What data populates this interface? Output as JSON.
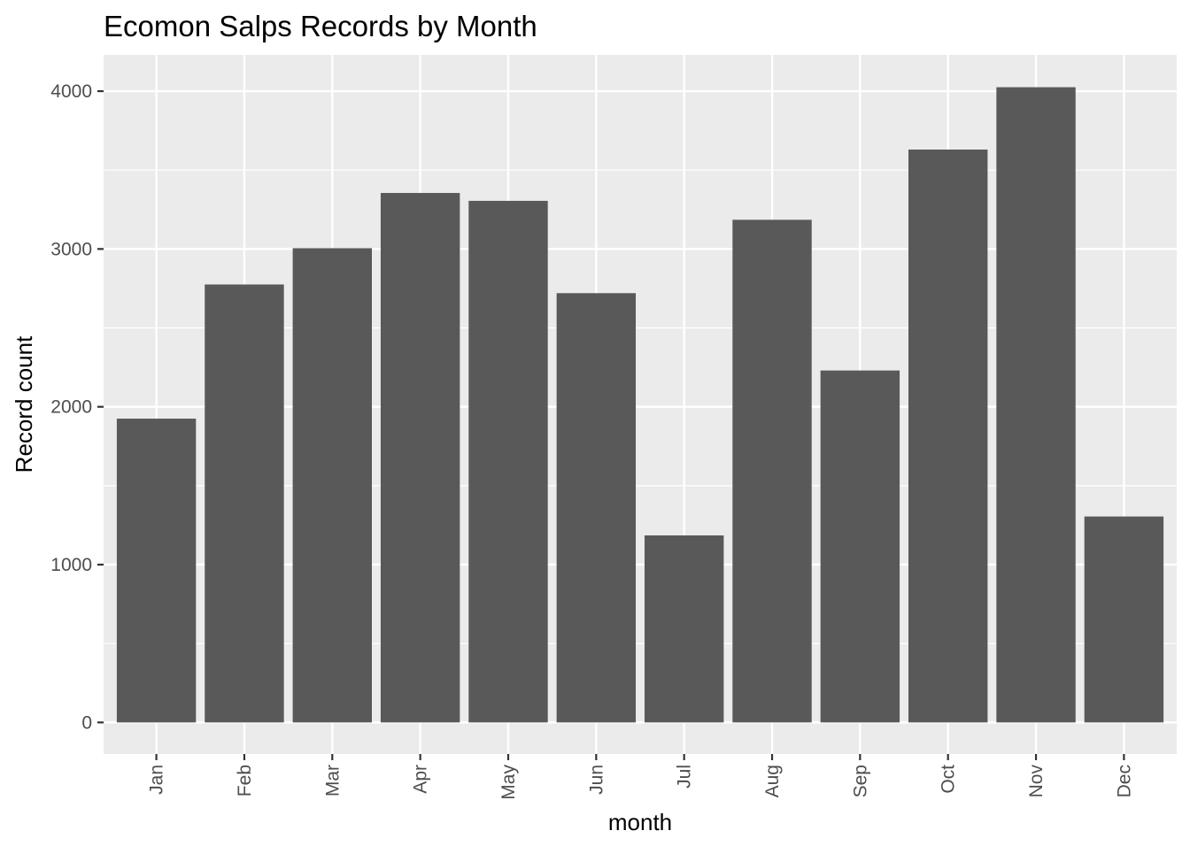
{
  "chart_data": {
    "type": "bar",
    "title": "Ecomon Salps Records by Month",
    "xlabel": "month",
    "ylabel": "Record count",
    "categories": [
      "Jan",
      "Feb",
      "Mar",
      "Apr",
      "May",
      "Jun",
      "Jul",
      "Aug",
      "Sep",
      "Oct",
      "Nov",
      "Dec"
    ],
    "values": [
      1925,
      2775,
      3005,
      3355,
      3305,
      2720,
      1185,
      3185,
      2230,
      3630,
      4025,
      1305
    ],
    "ylim": [
      -200,
      4230
    ],
    "yticks": [
      0,
      1000,
      2000,
      3000,
      4000
    ],
    "ytick_labels": [
      "0",
      "1000",
      "2000",
      "3000",
      "4000"
    ],
    "grid": true,
    "colors": {
      "bar": "#595959",
      "panel": "#ebebeb",
      "grid": "#ffffff",
      "text": "#000000",
      "tick_text": "#4d4d4d",
      "tick_mark": "#333333"
    }
  }
}
